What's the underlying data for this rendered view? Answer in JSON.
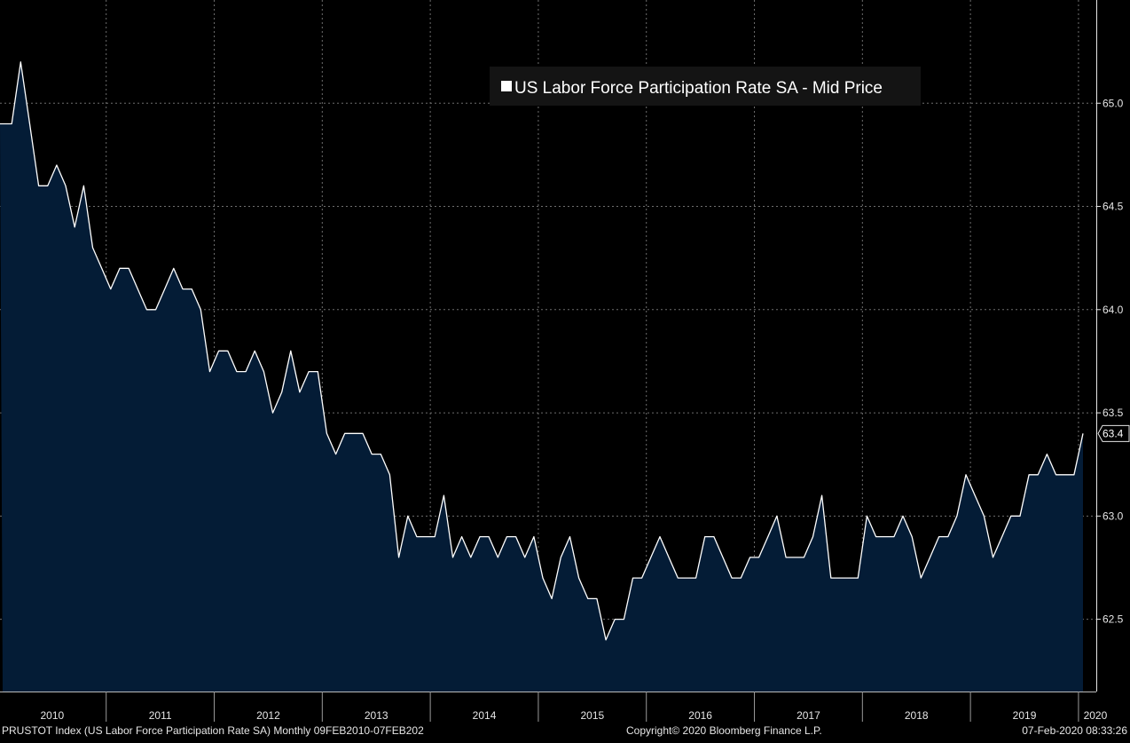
{
  "chart_data": {
    "type": "area",
    "title": "",
    "xlabel": "",
    "ylabel": "",
    "legend": {
      "text": "US Labor Force Participation Rate SA - Mid Price",
      "placement": "top-center"
    },
    "grid": true,
    "ylim": [
      62.15,
      65.5
    ],
    "yticks": [
      62.5,
      63.0,
      63.5,
      64.0,
      64.5,
      65.0
    ],
    "ytick_labels": [
      "62.5",
      "63.0",
      "63.5",
      "64.0",
      "64.5",
      "65.0"
    ],
    "x_start": "2010-01",
    "x_end": "2020-01",
    "x_labels": [
      "2010",
      "2011",
      "2012",
      "2013",
      "2014",
      "2015",
      "2016",
      "2017",
      "2018",
      "2019",
      "2020"
    ],
    "last_value_label": "63.4",
    "series": [
      {
        "frequency": "monthly",
        "x": [
          "2010-01",
          "2010-02",
          "2010-03",
          "2010-04",
          "2010-05",
          "2010-06",
          "2010-07",
          "2010-08",
          "2010-09",
          "2010-10",
          "2010-11",
          "2010-12",
          "2011-01",
          "2011-02",
          "2011-03",
          "2011-04",
          "2011-05",
          "2011-06",
          "2011-07",
          "2011-08",
          "2011-09",
          "2011-10",
          "2011-11",
          "2011-12",
          "2012-01",
          "2012-02",
          "2012-03",
          "2012-04",
          "2012-05",
          "2012-06",
          "2012-07",
          "2012-08",
          "2012-09",
          "2012-10",
          "2012-11",
          "2012-12",
          "2013-01",
          "2013-02",
          "2013-03",
          "2013-04",
          "2013-05",
          "2013-06",
          "2013-07",
          "2013-08",
          "2013-09",
          "2013-10",
          "2013-11",
          "2013-12",
          "2014-01",
          "2014-02",
          "2014-03",
          "2014-04",
          "2014-05",
          "2014-06",
          "2014-07",
          "2014-08",
          "2014-09",
          "2014-10",
          "2014-11",
          "2014-12",
          "2015-01",
          "2015-02",
          "2015-03",
          "2015-04",
          "2015-05",
          "2015-06",
          "2015-07",
          "2015-08",
          "2015-09",
          "2015-10",
          "2015-11",
          "2015-12",
          "2016-01",
          "2016-02",
          "2016-03",
          "2016-04",
          "2016-05",
          "2016-06",
          "2016-07",
          "2016-08",
          "2016-09",
          "2016-10",
          "2016-11",
          "2016-12",
          "2017-01",
          "2017-02",
          "2017-03",
          "2017-04",
          "2017-05",
          "2017-06",
          "2017-07",
          "2017-08",
          "2017-09",
          "2017-10",
          "2017-11",
          "2017-12",
          "2018-01",
          "2018-02",
          "2018-03",
          "2018-04",
          "2018-05",
          "2018-06",
          "2018-07",
          "2018-08",
          "2018-09",
          "2018-10",
          "2018-11",
          "2018-12",
          "2019-01",
          "2019-02",
          "2019-03",
          "2019-04",
          "2019-05",
          "2019-06",
          "2019-07",
          "2019-08",
          "2019-09",
          "2019-10",
          "2019-11",
          "2019-12",
          "2020-01"
        ],
        "values": [
          64.9,
          64.9,
          65.2,
          64.9,
          64.6,
          64.6,
          64.7,
          64.6,
          64.4,
          64.6,
          64.3,
          64.2,
          64.1,
          64.2,
          64.2,
          64.1,
          64.0,
          64.0,
          64.1,
          64.2,
          64.1,
          64.1,
          64.0,
          63.7,
          63.8,
          63.8,
          63.7,
          63.7,
          63.8,
          63.7,
          63.5,
          63.6,
          63.8,
          63.6,
          63.7,
          63.7,
          63.4,
          63.3,
          63.4,
          63.4,
          63.4,
          63.3,
          63.3,
          63.2,
          62.8,
          63.0,
          62.9,
          62.9,
          62.9,
          63.1,
          62.8,
          62.9,
          62.8,
          62.9,
          62.9,
          62.8,
          62.9,
          62.9,
          62.8,
          62.9,
          62.7,
          62.6,
          62.8,
          62.9,
          62.7,
          62.6,
          62.6,
          62.4,
          62.5,
          62.5,
          62.7,
          62.7,
          62.8,
          62.9,
          62.8,
          62.7,
          62.7,
          62.7,
          62.9,
          62.9,
          62.8,
          62.7,
          62.7,
          62.8,
          62.8,
          62.9,
          63.0,
          62.8,
          62.8,
          62.8,
          62.9,
          63.1,
          62.7,
          62.7,
          62.7,
          62.7,
          63.0,
          62.9,
          62.9,
          62.9,
          63.0,
          62.9,
          62.7,
          62.8,
          62.9,
          62.9,
          63.0,
          63.2,
          63.1,
          63.0,
          62.8,
          62.9,
          63.0,
          63.0,
          63.2,
          63.2,
          63.3,
          63.2,
          63.2,
          63.2,
          63.4
        ]
      }
    ],
    "colors": {
      "background": "#000000",
      "area_fill": "#041c36",
      "line": "#ffffff",
      "grid": "#6e6e6e",
      "text": "#e6e6e6"
    }
  },
  "footer": {
    "left": "PRUSTOT Index (US Labor Force Participation Rate SA)  Monthly 09FEB2010-07FEB202",
    "center": "Copyright© 2020 Bloomberg Finance L.P.",
    "right": "07-Feb-2020 08:33:26"
  }
}
